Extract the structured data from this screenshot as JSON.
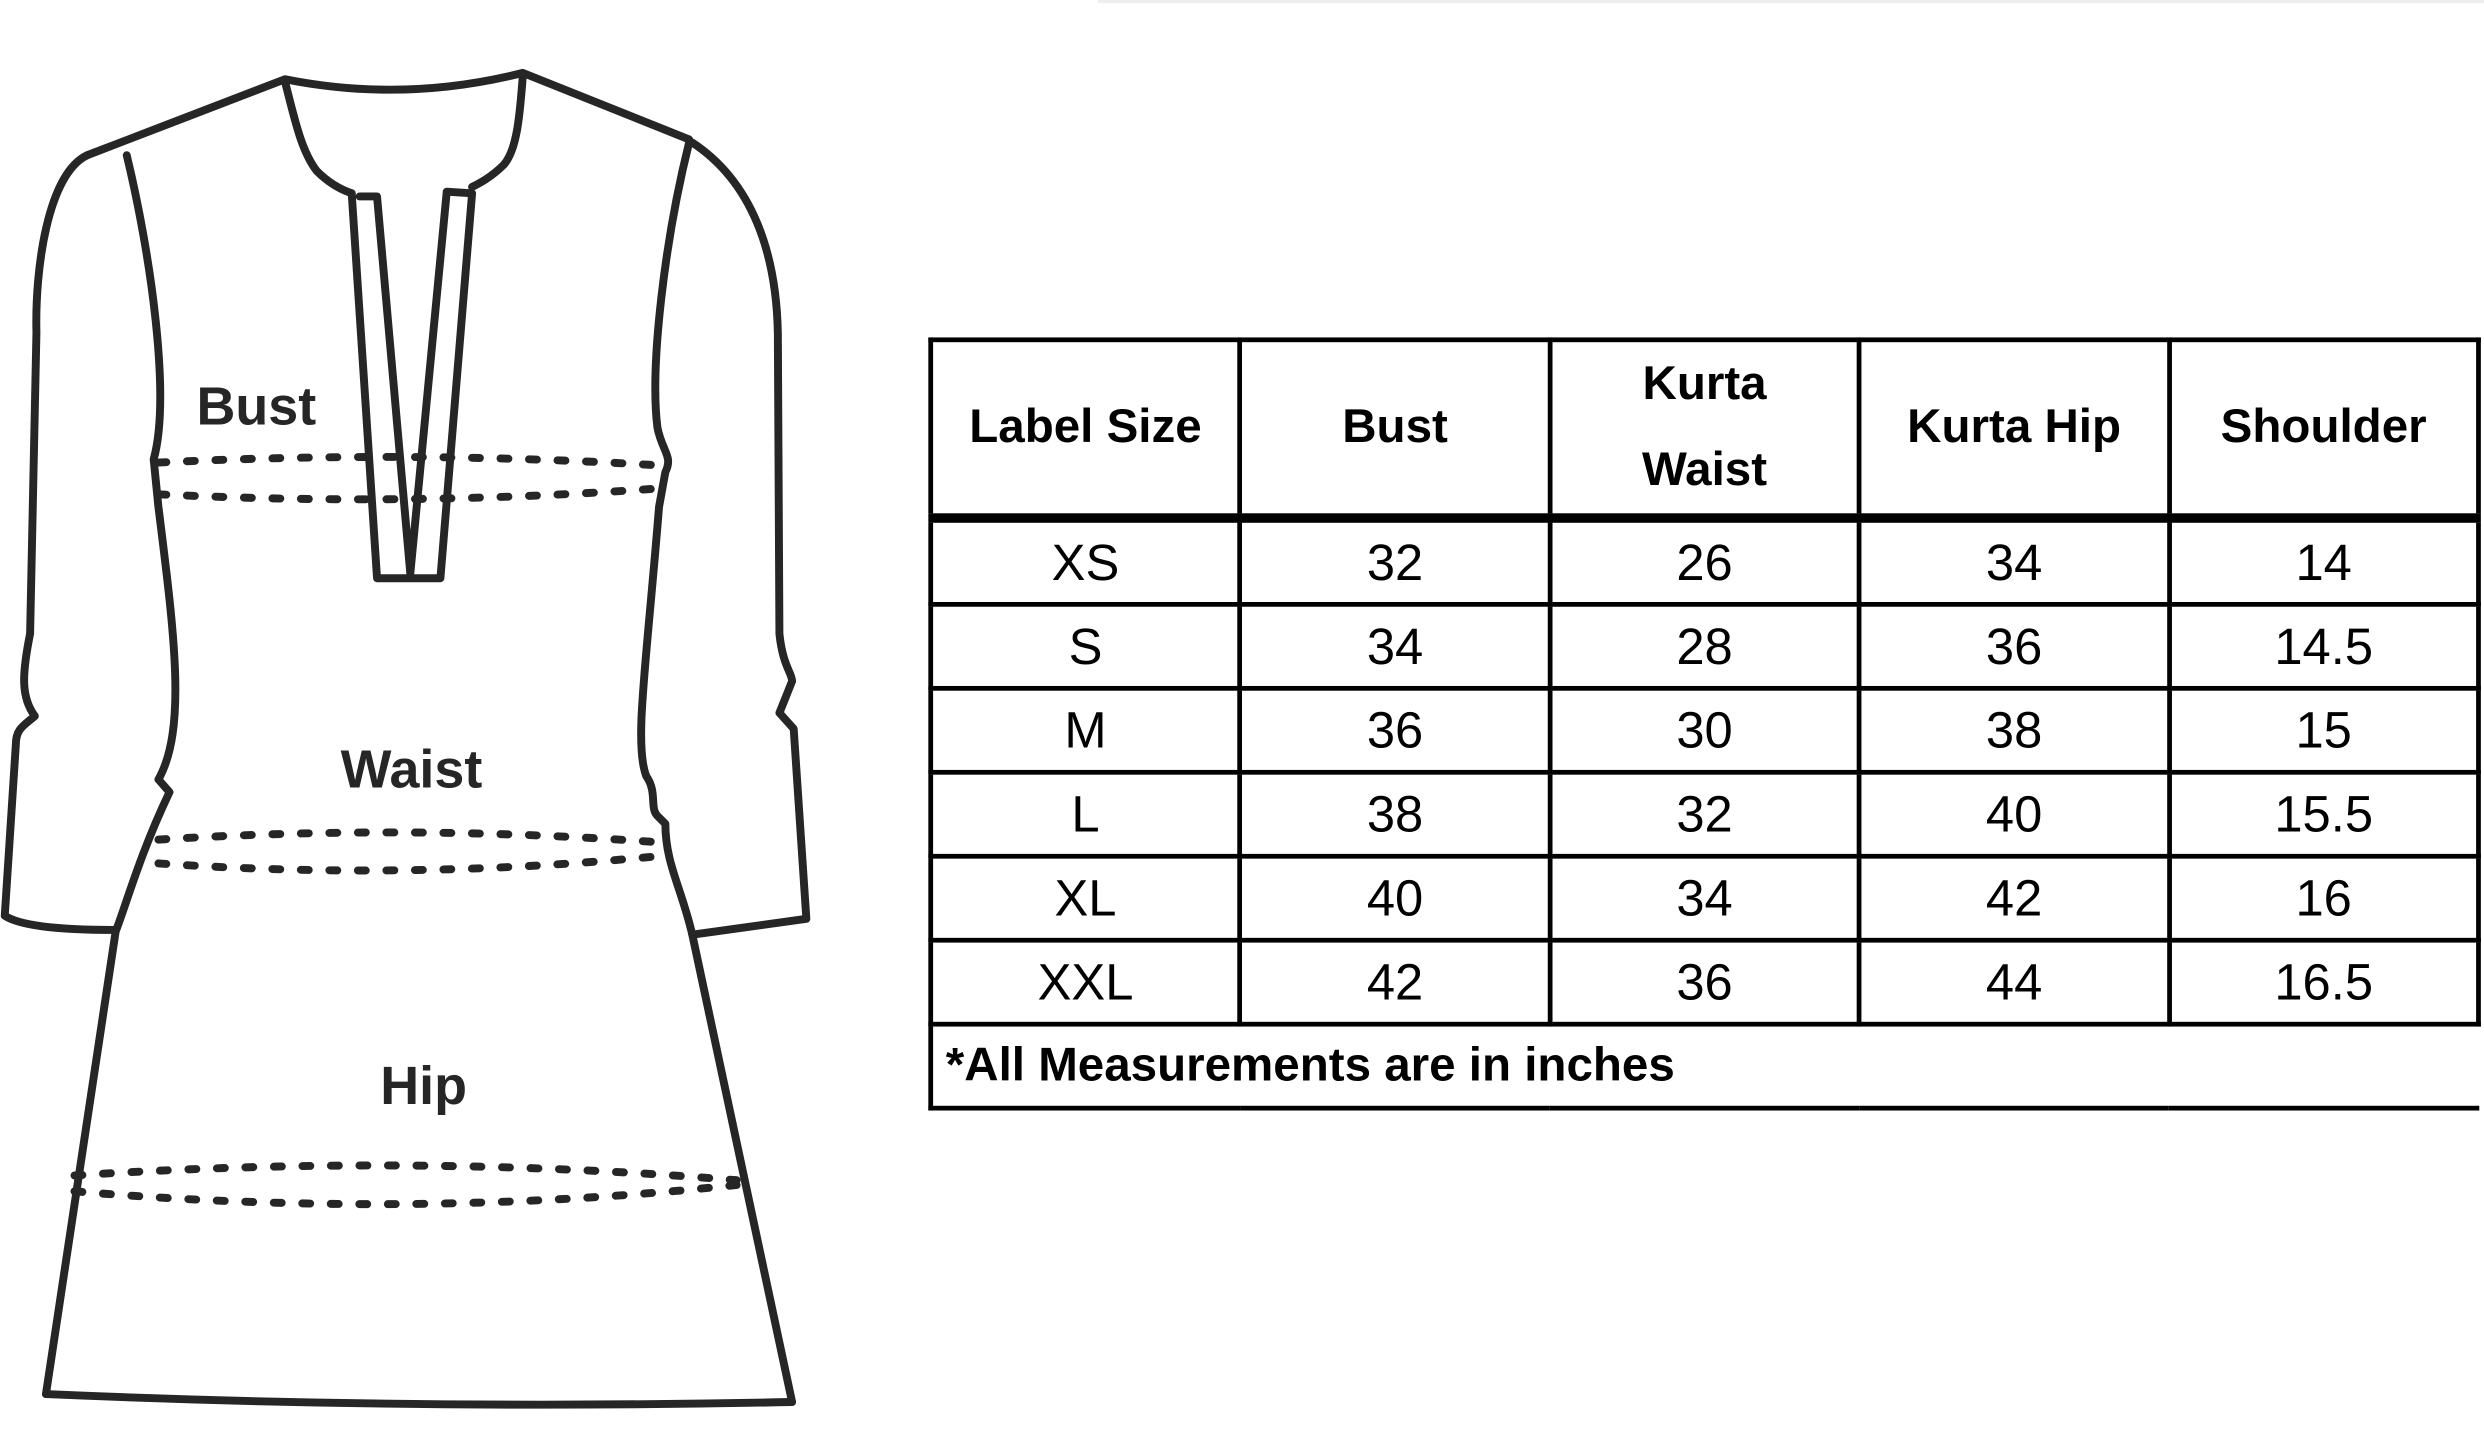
{
  "diagram": {
    "labels": {
      "bust": "Bust",
      "waist": "Waist",
      "hip": "Hip"
    }
  },
  "table": {
    "headers": [
      "Label Size",
      "Bust",
      "Kurta Waist",
      "Kurta Hip",
      "Shoulder"
    ],
    "header_lines": {
      "waist_1": "Kurta",
      "waist_2": "Waist"
    },
    "rows": [
      [
        "XS",
        "32",
        "26",
        "34",
        "14"
      ],
      [
        "S",
        "34",
        "28",
        "36",
        "14.5"
      ],
      [
        "M",
        "36",
        "30",
        "38",
        "15"
      ],
      [
        "L",
        "38",
        "32",
        "40",
        "15.5"
      ],
      [
        "XL",
        "40",
        "34",
        "42",
        "16"
      ],
      [
        "XXL",
        "42",
        "36",
        "44",
        "16.5"
      ]
    ],
    "footnote": "*All Measurements are in inches"
  }
}
